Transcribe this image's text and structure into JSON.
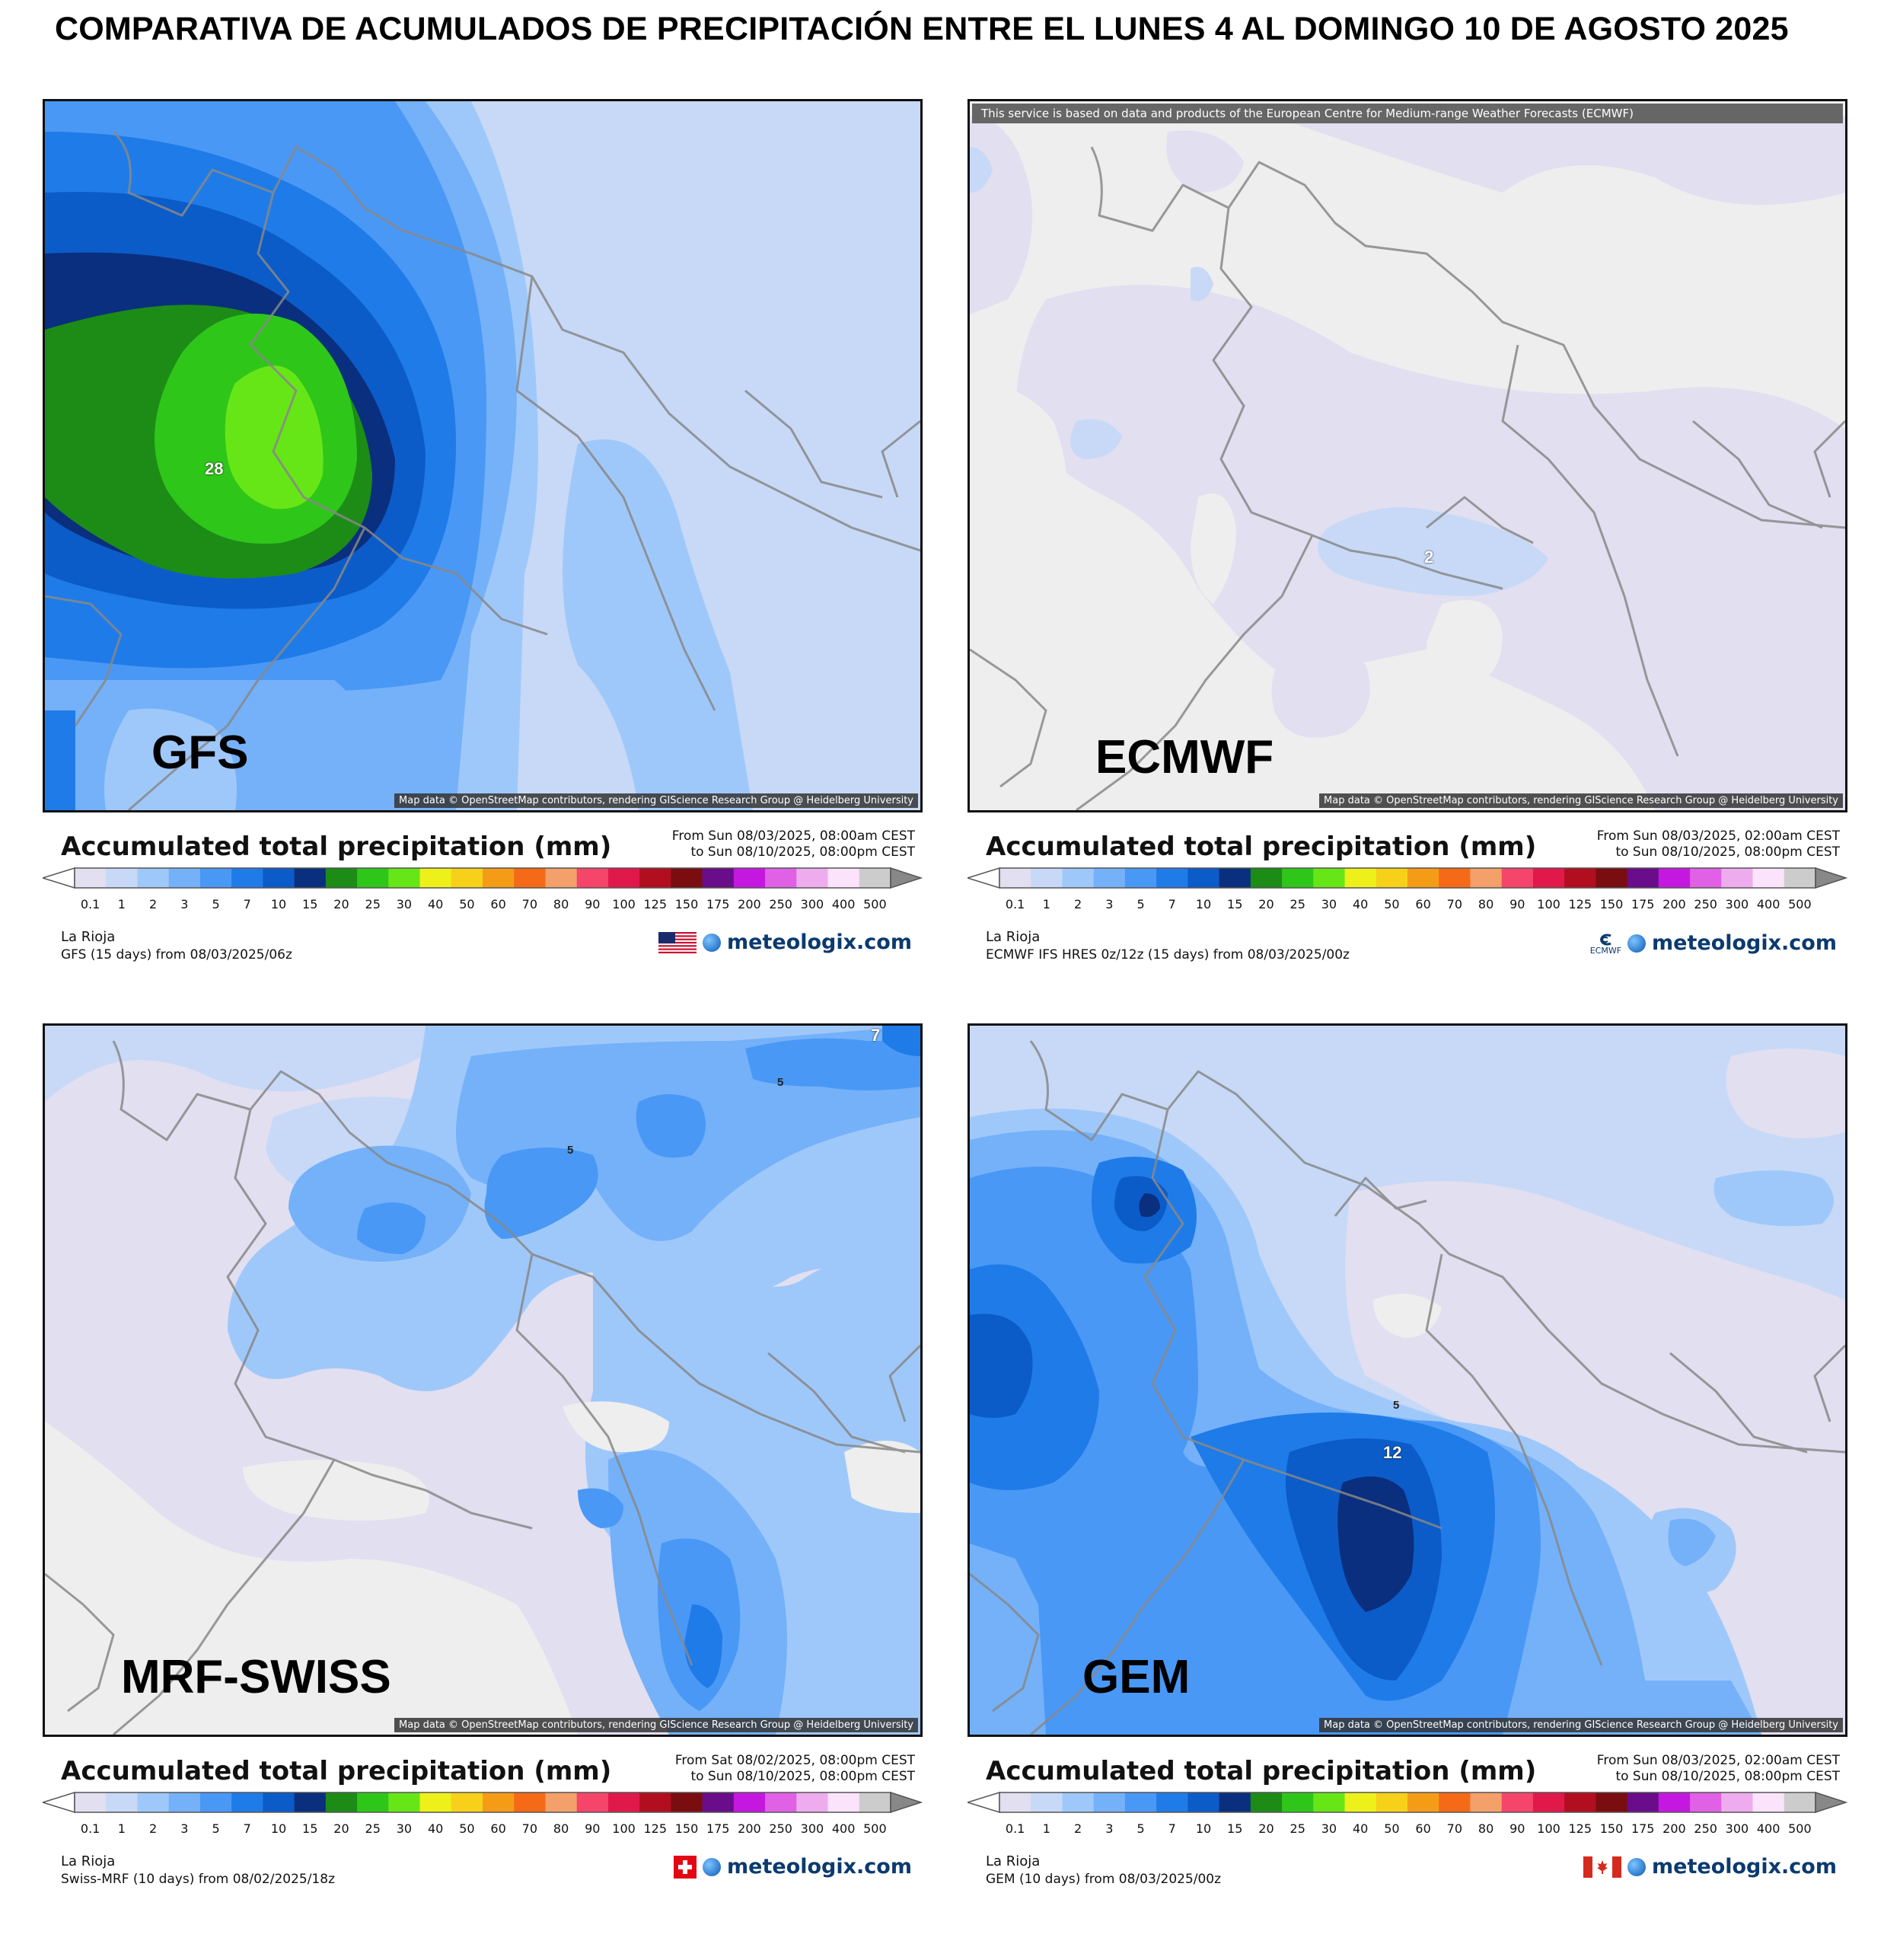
{
  "title": "COMPARATIVA DE ACUMULADOS DE PRECIPITACIÓN ENTRE EL LUNES 4 AL DOMINGO 10 DE AGOSTO 2025",
  "legend_scale": [
    "0.1",
    "1",
    "2",
    "3",
    "5",
    "7",
    "10",
    "15",
    "20",
    "25",
    "30",
    "40",
    "50",
    "60",
    "70",
    "80",
    "90",
    "100",
    "125",
    "150",
    "175",
    "200",
    "250",
    "300",
    "400",
    "500"
  ],
  "legend_colors": [
    "#e1dff0",
    "#c7d9f7",
    "#9fc8fa",
    "#74b1f9",
    "#4a98f5",
    "#1f7be8",
    "#0b5cc8",
    "#0a2f7e",
    "#1c8c17",
    "#2fc61a",
    "#67e617",
    "#eef01a",
    "#f7d01a",
    "#f59c17",
    "#f56a17",
    "#f3a06a",
    "#f5456a",
    "#e0194a",
    "#b10f1f",
    "#7a0d10",
    "#6a0d8a",
    "#c418e0",
    "#e060e6",
    "#eeacee",
    "#fbe3fb",
    "#cccccc"
  ],
  "panels": [
    {
      "model": "GFS",
      "legend_title": "Accumulated total precipitation (mm)",
      "period_from": "From Sun 08/03/2025, 08:00am CEST",
      "period_to": "to Sun 08/10/2025, 08:00pm CEST",
      "region": "La Rioja",
      "run": "GFS (15 days) from 08/03/2025/06z",
      "credits": "Map data © OpenStreetMap contributors, rendering GIScience Research Group @ Heidelberg University",
      "brand": "meteologix.com",
      "flag": "usa-flag-icon",
      "contour_labels": [
        "28"
      ]
    },
    {
      "model": "ECMWF",
      "legend_title": "Accumulated total precipitation (mm)",
      "period_from": "From Sun 08/03/2025, 02:00am CEST",
      "period_to": "to Sun 08/10/2025, 08:00pm CEST",
      "region": "La Rioja",
      "run": "ECMWF IFS HRES 0z/12z (15 days) from 08/03/2025/00z",
      "credits": "Map data © OpenStreetMap contributors, rendering GIScience Research Group @ Heidelberg University",
      "banner": "This service is based on data and products of the European Centre for Medium-range Weather Forecasts (ECMWF)",
      "brand": "meteologix.com",
      "flag": "ecmwf-logo-icon",
      "flag_text": "ECMWF",
      "contour_labels": [
        "2"
      ]
    },
    {
      "model": "MRF-SWISS",
      "legend_title": "Accumulated total precipitation (mm)",
      "period_from": "From Sat 08/02/2025, 08:00pm CEST",
      "period_to": "to Sun 08/10/2025, 08:00pm CEST",
      "region": "La Rioja",
      "run": "Swiss-MRF (10 days) from 08/02/2025/18z",
      "credits": "Map data © OpenStreetMap contributors, rendering GIScience Research Group @ Heidelberg University",
      "brand": "meteologix.com",
      "flag": "swiss-flag-icon",
      "contour_labels": [
        "7",
        "5",
        "5"
      ]
    },
    {
      "model": "GEM",
      "legend_title": "Accumulated total precipitation (mm)",
      "period_from": "From Sun 08/03/2025, 02:00am CEST",
      "period_to": "to Sun 08/10/2025, 08:00pm CEST",
      "region": "La Rioja",
      "run": "GEM (10 days) from 08/03/2025/00z",
      "credits": "Map data © OpenStreetMap contributors, rendering GIScience Research Group @ Heidelberg University",
      "brand": "meteologix.com",
      "flag": "canada-flag-icon",
      "contour_labels": [
        "5",
        "12"
      ]
    }
  ]
}
